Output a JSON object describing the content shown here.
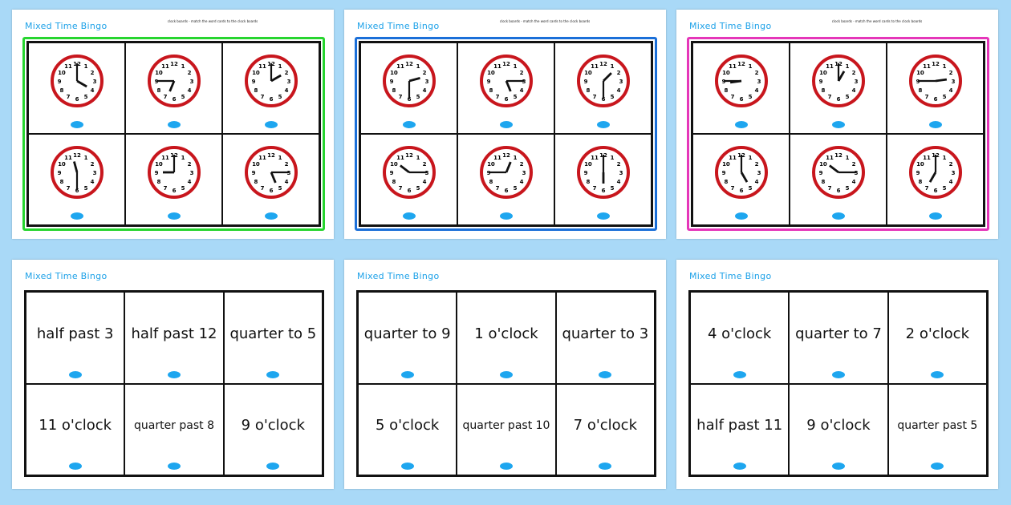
{
  "title": "Mixed Time Bingo",
  "instructions": "clock boards - match the word cards to the clock boards",
  "clock_boards": [
    {
      "border_color": "#27d52f",
      "times": [
        "4:00",
        "6:45",
        "2:00",
        "11:30",
        "9:00",
        "5:15"
      ]
    },
    {
      "border_color": "#1b6fd8",
      "times": [
        "2:30",
        "5:15",
        "1:30",
        "10:15",
        "12:45",
        "6:00"
      ]
    },
    {
      "border_color": "#e536b9",
      "times": [
        "8:45",
        "1:00",
        "2:45",
        "5:00",
        "10:15",
        "7:00"
      ]
    }
  ],
  "word_boards": [
    {
      "cards": [
        "half past 3",
        "half past 12",
        "quarter to 5",
        "11 o'clock",
        "quarter past 8",
        "9 o'clock"
      ]
    },
    {
      "cards": [
        "quarter to 9",
        "1 o'clock",
        "quarter to 3",
        "5 o'clock",
        "quarter past 10",
        "7 o'clock"
      ]
    },
    {
      "cards": [
        "4 o'clock",
        "quarter to 7",
        "2 o'clock",
        "half past 11",
        "9 o'clock",
        "quarter past 5"
      ]
    }
  ],
  "colors": {
    "clock_rim": "#c8161d",
    "logo": "#1ea6ef",
    "title": "#1da1e8"
  }
}
